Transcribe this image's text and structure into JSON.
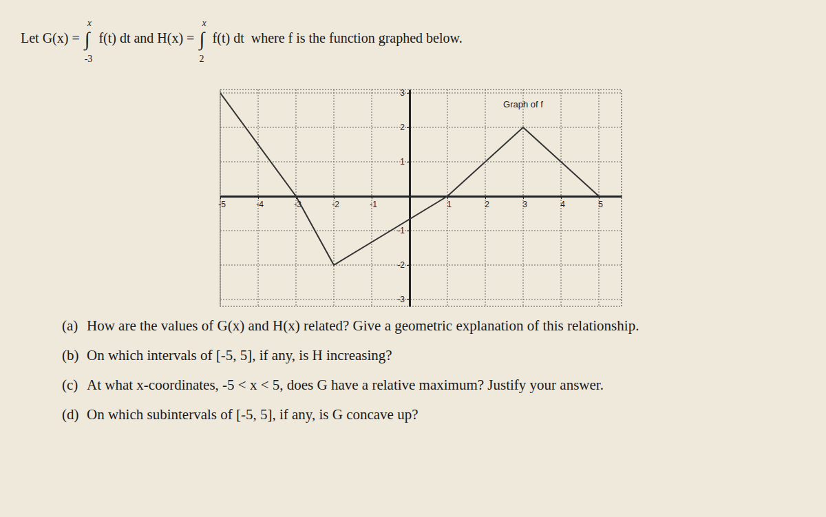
{
  "document": {
    "intro": [
      {
        "text": "Let G(x) = "
      },
      {
        "symbol": "∫",
        "lower": "-3",
        "upper": "x"
      },
      {
        "text": " f(t) dt and H(x) = "
      },
      {
        "symbol": "∫",
        "lower": "2",
        "upper": "x"
      },
      {
        "text": " f(t) dt  where f is the function graphed below."
      }
    ],
    "questions": [
      {
        "label": "(a)",
        "text": "How are the values of G(x) and H(x) related? Give a geometric explanation of this relationship."
      },
      {
        "label": "(b)",
        "text": "On which intervals of [-5, 5], if any, is H increasing?"
      },
      {
        "label": "(c)",
        "text": "At what x-coordinates, -5 < x < 5, does G have a relative maximum? Justify your answer."
      },
      {
        "label": "(d)",
        "text": "On which subintervals of [-5, 5], if any, is G concave up?"
      }
    ]
  },
  "chart_data": {
    "type": "line",
    "title": "Graph of f",
    "x": [
      -5,
      -3,
      -2,
      1,
      3,
      5
    ],
    "values": [
      3,
      0,
      -2,
      0,
      2,
      0
    ],
    "color": "#333333",
    "xlim": [
      -5,
      5.6
    ],
    "ylim": [
      -3.2,
      3.1
    ],
    "xticks": [
      -5,
      -4,
      -3,
      -2,
      -1,
      1,
      2,
      3,
      4,
      5
    ],
    "yticks": [
      -3,
      -2,
      -1,
      1,
      2,
      3
    ],
    "grid": true
  }
}
